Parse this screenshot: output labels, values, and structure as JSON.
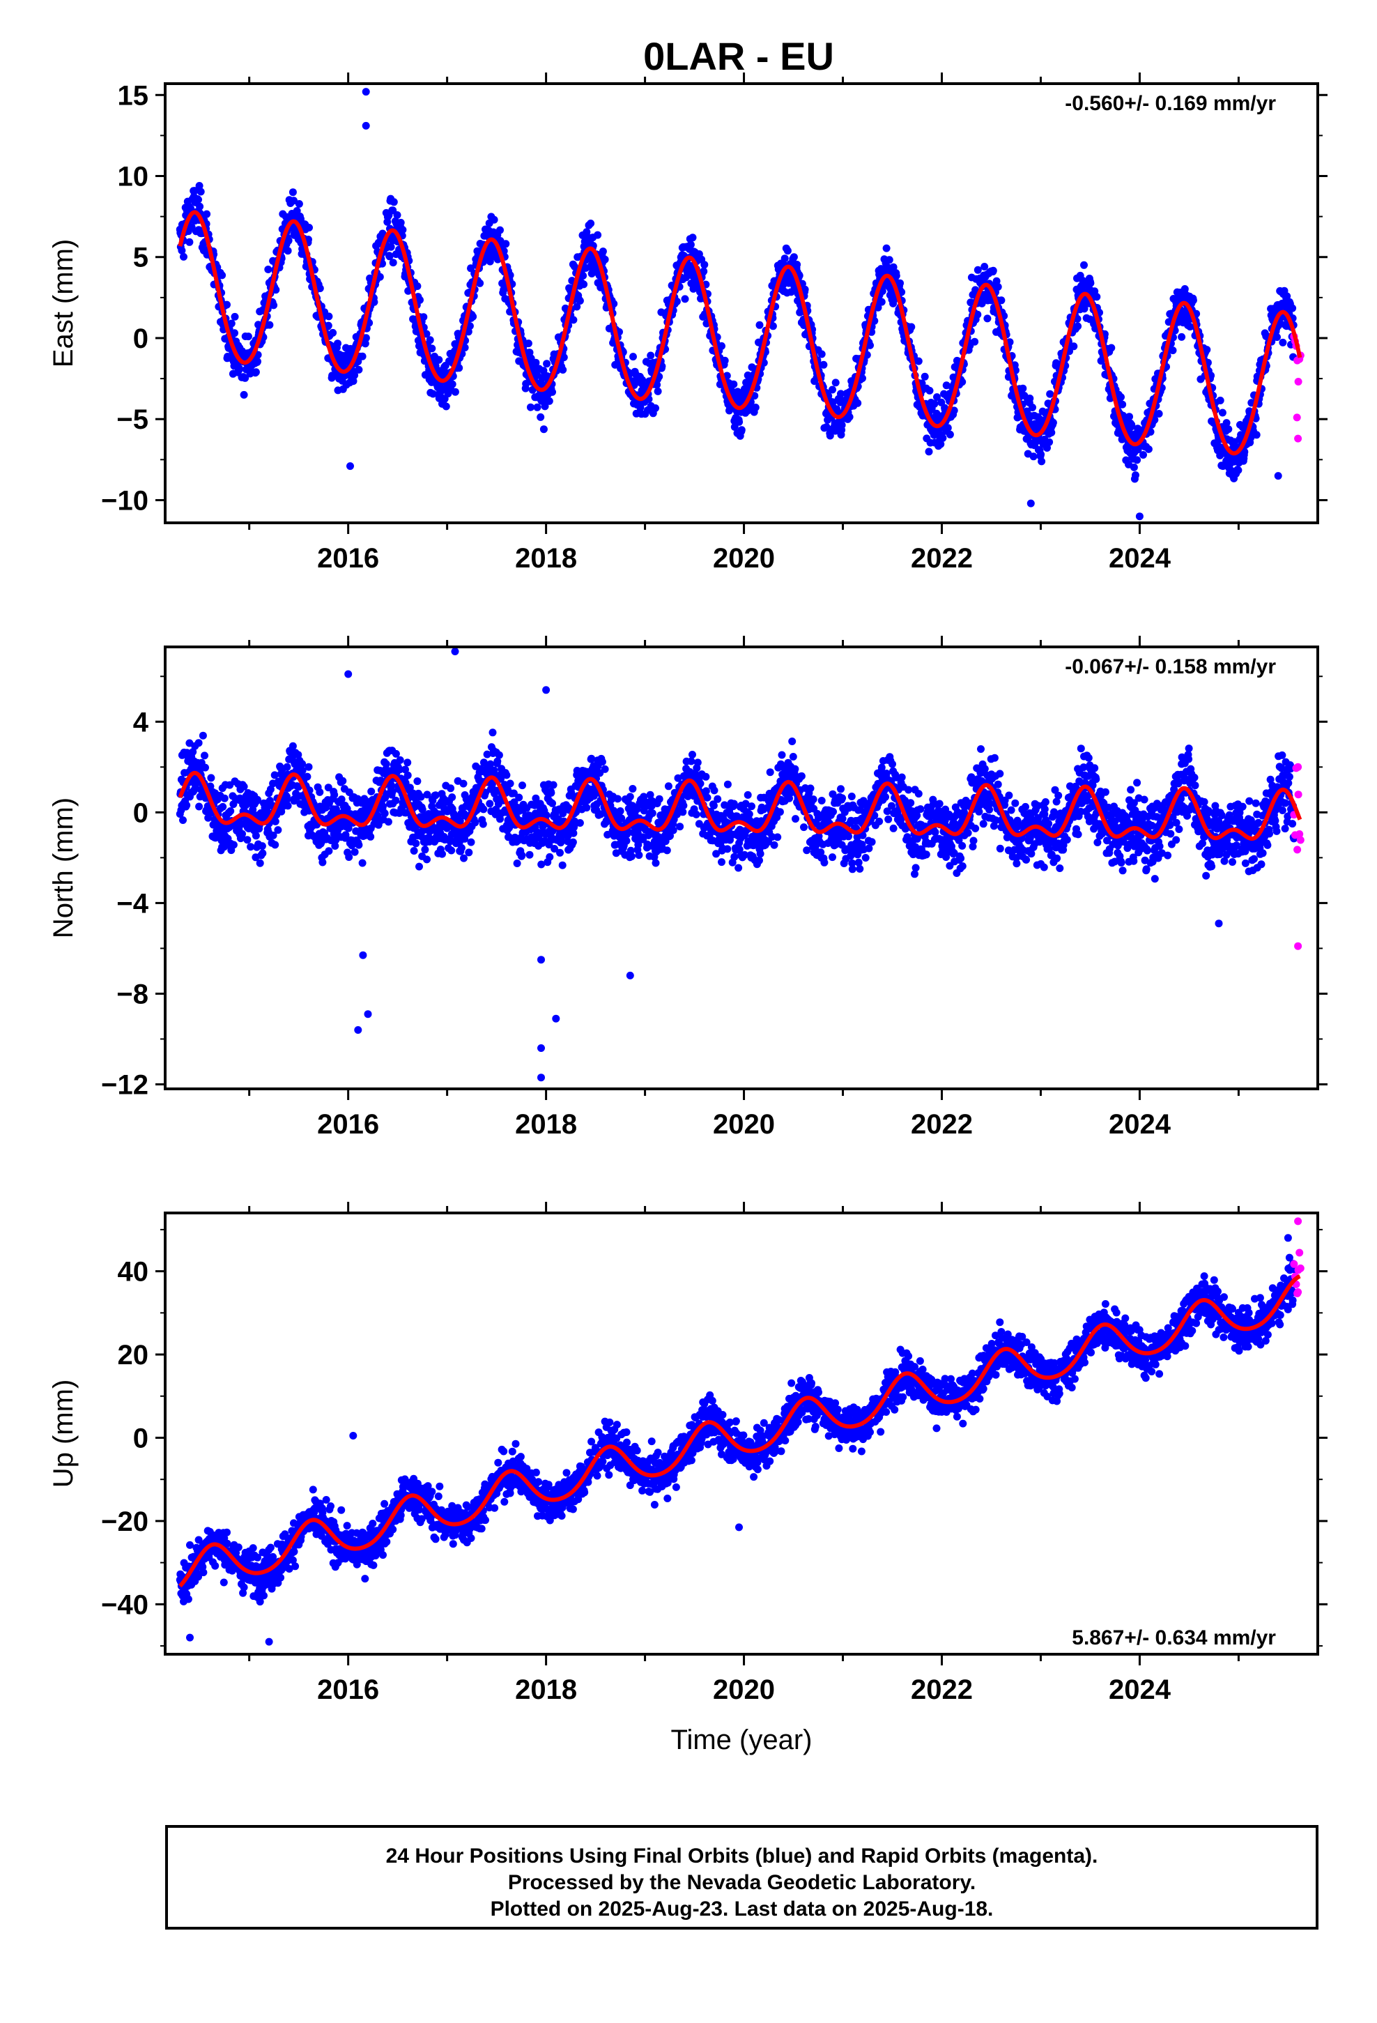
{
  "title": "0LAR - EU",
  "footer": {
    "line1": "24 Hour Positions Using Final Orbits (blue) and Rapid Orbits (magenta).",
    "line2": "Processed by the Nevada Geodetic Laboratory.",
    "line3": "Plotted on 2025-Aug-23. Last data on 2025-Aug-18."
  },
  "colors": {
    "final": "#0000ff",
    "rapid": "#ff00ff",
    "model": "#ff0000",
    "axes": "#000000"
  },
  "chart_data": [
    {
      "type": "scatter",
      "panel": "east",
      "title": "0LAR - EU",
      "ylabel": "East (mm)",
      "xlabel": "",
      "xlim": [
        2014.15,
        2025.8
      ],
      "ylim": [
        -11.4,
        15.7
      ],
      "xticks": [
        "2016",
        "2018",
        "2020",
        "2022",
        "2024"
      ],
      "yticks": [
        "15",
        "10",
        "5",
        "0",
        "−5",
        "−10"
      ],
      "rate_text": "-0.560+/- 0.169 mm/yr",
      "rate_position": "top-right",
      "grid": false,
      "model": {
        "t0": 2014.3,
        "t1": 2025.62,
        "offset": 3.1,
        "slope": -0.56,
        "annual_amp": 4.5,
        "annual_phase_year": 2014.45,
        "semiannual_amp": 0.25
      },
      "series": [
        {
          "name": "Final Orbits",
          "color": "#0000ff",
          "kind": "points",
          "start": 2014.3,
          "end": 2025.56,
          "noise": 1.1,
          "outliers": [
            [
              2016.18,
              15.2
            ],
            [
              2016.18,
              13.1
            ],
            [
              2016.02,
              -7.9
            ],
            [
              2022.9,
              -10.2
            ],
            [
              2024.0,
              -11.0
            ],
            [
              2025.4,
              -8.5
            ]
          ]
        },
        {
          "name": "Rapid Orbits",
          "color": "#ff00ff",
          "kind": "points",
          "start": 2025.56,
          "end": 2025.63,
          "noise": 1.2,
          "outliers": [
            [
              2025.6,
              -6.2
            ],
            [
              2025.59,
              -4.9
            ]
          ]
        },
        {
          "name": "Model",
          "color": "#ff0000",
          "kind": "line"
        }
      ]
    },
    {
      "type": "scatter",
      "panel": "north",
      "ylabel": "North (mm)",
      "xlabel": "",
      "xlim": [
        2014.15,
        2025.8
      ],
      "ylim": [
        -12.2,
        7.3
      ],
      "xticks": [
        "2016",
        "2018",
        "2020",
        "2022",
        "2024"
      ],
      "yticks": [
        "4",
        "0",
        "−4",
        "−8",
        "−12"
      ],
      "rate_text": "-0.067+/- 0.158 mm/yr",
      "rate_position": "top-right",
      "grid": false,
      "model": {
        "t0": 2014.3,
        "t1": 2025.62,
        "offset": 0.3,
        "slope": -0.067,
        "annual_amp": 0.9,
        "annual_phase_year": 2014.45,
        "semiannual_amp": 0.55
      },
      "series": [
        {
          "name": "Final Orbits",
          "color": "#0000ff",
          "kind": "points",
          "start": 2014.3,
          "end": 2025.56,
          "noise": 1.05,
          "outliers": [
            [
              2017.08,
              7.1
            ],
            [
              2016.0,
              6.1
            ],
            [
              2018.0,
              5.4
            ],
            [
              2016.1,
              -9.6
            ],
            [
              2016.2,
              -8.9
            ],
            [
              2017.95,
              -10.4
            ],
            [
              2017.95,
              -11.7
            ],
            [
              2018.1,
              -9.1
            ],
            [
              2017.95,
              -6.5
            ],
            [
              2018.85,
              -7.2
            ],
            [
              2016.15,
              -6.3
            ],
            [
              2024.8,
              -4.9
            ]
          ]
        },
        {
          "name": "Rapid Orbits",
          "color": "#ff00ff",
          "kind": "points",
          "start": 2025.56,
          "end": 2025.63,
          "noise": 1.4,
          "outliers": [
            [
              2025.6,
              -5.9
            ],
            [
              2025.6,
              2.0
            ]
          ]
        },
        {
          "name": "Model",
          "color": "#ff0000",
          "kind": "line"
        }
      ]
    },
    {
      "type": "scatter",
      "panel": "up",
      "ylabel": "Up (mm)",
      "xlabel": "Time (year)",
      "xlim": [
        2014.15,
        2025.8
      ],
      "ylim": [
        -52,
        54
      ],
      "xticks": [
        "2016",
        "2018",
        "2020",
        "2022",
        "2024"
      ],
      "yticks": [
        "40",
        "20",
        "0",
        "−20",
        "−40"
      ],
      "rate_text": "5.867+/- 0.634 mm/yr",
      "rate_position": "bottom-right",
      "grid": false,
      "model": {
        "t0": 2014.3,
        "t1": 2025.62,
        "offset": -33.0,
        "slope": 5.867,
        "annual_amp": 4.8,
        "annual_phase_year": 2014.63,
        "semiannual_amp": 0.6
      },
      "series": [
        {
          "name": "Final Orbits",
          "color": "#0000ff",
          "kind": "points",
          "start": 2014.3,
          "end": 2025.56,
          "noise": 3.6,
          "outliers": [
            [
              2015.2,
              -49.0
            ],
            [
              2014.4,
              -48.0
            ],
            [
              2016.05,
              0.5
            ],
            [
              2019.95,
              -21.5
            ],
            [
              2025.5,
              48.0
            ]
          ]
        },
        {
          "name": "Rapid Orbits",
          "color": "#ff00ff",
          "kind": "points",
          "start": 2025.56,
          "end": 2025.63,
          "noise": 4.5,
          "outliers": [
            [
              2025.6,
              52.0
            ],
            [
              2025.6,
              35.0
            ]
          ]
        },
        {
          "name": "Model",
          "color": "#ff0000",
          "kind": "line"
        }
      ]
    }
  ]
}
